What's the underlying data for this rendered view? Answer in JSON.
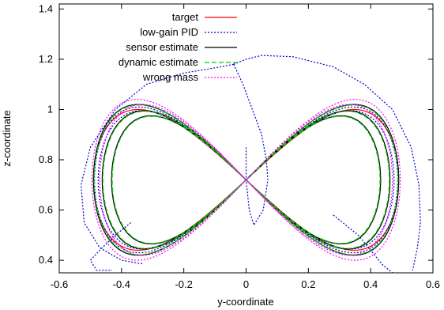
{
  "chart_data": {
    "type": "line",
    "title": "",
    "xlabel": "y-coordinate",
    "ylabel": "z-coordinate",
    "xlim": [
      -0.6,
      0.6
    ],
    "ylim": [
      0.35,
      1.42
    ],
    "xticks": [
      "-0.6",
      "-0.4",
      "-0.2",
      "0",
      "0.2",
      "0.4",
      "0.6"
    ],
    "xtick_values": [
      -0.6,
      -0.4,
      -0.2,
      0,
      0.2,
      0.4,
      0.6
    ],
    "yticks": [
      "0.4",
      "0.6",
      "0.8",
      "1",
      "1.2",
      "1.4"
    ],
    "ytick_values": [
      0.4,
      0.6,
      0.8,
      1.0,
      1.2,
      1.4
    ],
    "grid": false,
    "legend_position": "top-right",
    "series": [
      {
        "name": "target",
        "color": "#ff0000",
        "dash": "solid",
        "loops": [
          {
            "ax": 0.49,
            "cz": 0.72,
            "bz": 0.28
          }
        ]
      },
      {
        "name": "low-gain PID",
        "color": "#0000cc",
        "dash": "dotted",
        "loops": [
          {
            "ax": 0.487,
            "cz": 0.72,
            "bz": 0.29
          },
          {
            "ax": 0.475,
            "cz": 0.72,
            "bz": 0.275
          }
        ],
        "transients": [
          [
            [
              -0.04,
              1.18
            ],
            [
              -0.08,
              1.17
            ],
            [
              -0.2,
              1.145
            ],
            [
              -0.32,
              1.1
            ],
            [
              -0.42,
              1.0
            ],
            [
              -0.5,
              0.85
            ],
            [
              -0.53,
              0.7
            ],
            [
              -0.52,
              0.55
            ],
            [
              -0.47,
              0.45
            ],
            [
              -0.4,
              0.4
            ],
            [
              -0.33,
              0.385
            ]
          ],
          [
            [
              -0.04,
              1.18
            ],
            [
              0.0,
              1.2
            ],
            [
              0.05,
              1.215
            ],
            [
              0.15,
              1.21
            ],
            [
              0.28,
              1.17
            ],
            [
              0.38,
              1.1
            ],
            [
              0.47,
              1.0
            ],
            [
              0.53,
              0.85
            ],
            [
              0.555,
              0.7
            ],
            [
              0.56,
              0.55
            ],
            [
              0.55,
              0.45
            ],
            [
              0.535,
              0.36
            ]
          ],
          [
            [
              -0.04,
              1.18
            ],
            [
              -0.01,
              1.1
            ],
            [
              0.02,
              1.0
            ],
            [
              0.05,
              0.9
            ],
            [
              0.065,
              0.8
            ],
            [
              0.07,
              0.72
            ],
            [
              0.055,
              0.6
            ],
            [
              0.025,
              0.54
            ],
            [
              0.01,
              0.6
            ],
            [
              0.0,
              0.72
            ],
            [
              0.0,
              0.85
            ]
          ],
          [
            [
              -0.37,
              0.55
            ],
            [
              -0.42,
              0.5
            ],
            [
              -0.47,
              0.44
            ],
            [
              -0.5,
              0.4
            ],
            [
              -0.48,
              0.36
            ],
            [
              -0.43,
              0.36
            ]
          ],
          [
            [
              0.28,
              0.58
            ],
            [
              0.36,
              0.5
            ],
            [
              0.4,
              0.44
            ],
            [
              0.44,
              0.38
            ],
            [
              0.47,
              0.35
            ]
          ]
        ]
      },
      {
        "name": "sensor estimate",
        "color": "#000000",
        "dash": "solid",
        "loops": [
          {
            "ax": 0.49,
            "cz": 0.72,
            "bz": 0.3
          },
          {
            "ax": 0.462,
            "cz": 0.72,
            "bz": 0.275
          },
          {
            "ax": 0.432,
            "cz": 0.72,
            "bz": 0.255
          }
        ]
      },
      {
        "name": "dynamic estimate",
        "color": "#00cc00",
        "dash": "dashed",
        "loops": [
          {
            "ax": 0.488,
            "cz": 0.72,
            "bz": 0.298
          },
          {
            "ax": 0.46,
            "cz": 0.72,
            "bz": 0.273
          },
          {
            "ax": 0.43,
            "cz": 0.72,
            "bz": 0.253
          }
        ]
      },
      {
        "name": "wrong mass",
        "color": "#ff00ff",
        "dash": "dotted",
        "loops": [
          {
            "ax": 0.495,
            "cz": 0.72,
            "bz": 0.32
          },
          {
            "ax": 0.47,
            "cz": 0.72,
            "bz": 0.3
          }
        ]
      }
    ]
  }
}
